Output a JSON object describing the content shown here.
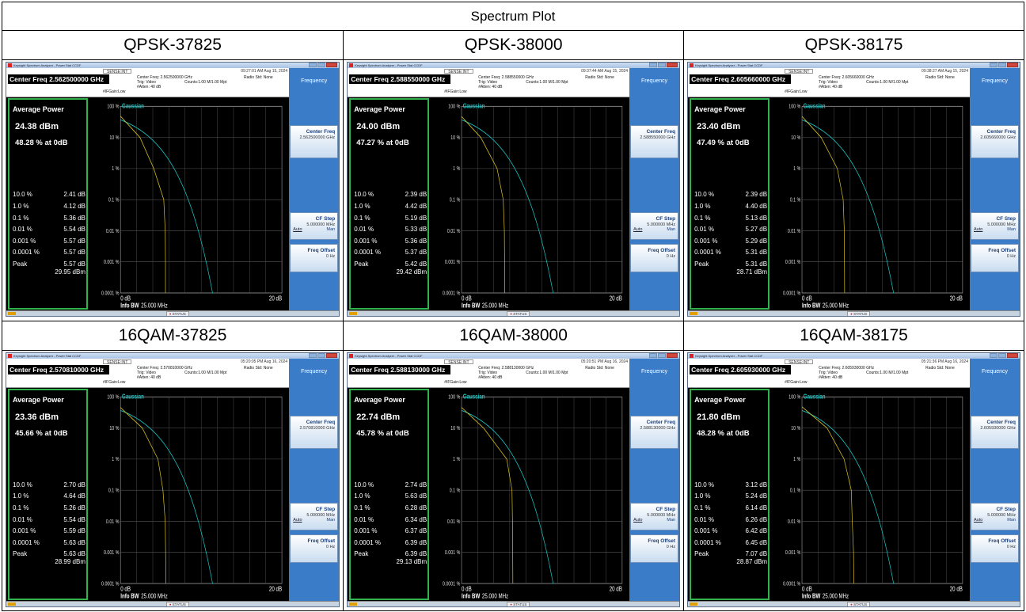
{
  "title": "Spectrum Plot",
  "info_bw_label": "Info BW",
  "info_bw_value": "25.000 MHz",
  "x_start": "0 dB",
  "x_end": "20 dB",
  "y_ticks": [
    "100 %",
    "10 %",
    "1 %",
    "0.1 %",
    "0.01 %",
    "0.001 %",
    "0.0001 %"
  ],
  "gaussian_label": "Gaussian",
  "avg_power_title": "Average Power",
  "app_title": "Keysight Spectrum Analyzer - Power Stat CCDF",
  "status_text": "STATUS",
  "menu": {
    "title": "Frequency",
    "center_freq_label": "Center Freq",
    "cf_step_label": "CF Step",
    "cf_step_value": "5.000000 MHz",
    "auto": "Auto",
    "man": "Man",
    "freq_offset_label": "Freq Offset",
    "freq_offset_value": "0 Hz"
  },
  "header_static": {
    "trig": "Trig: Video",
    "atten": "#Atten: 40 dB",
    "counts": "Counts:1.00 M/1.00 Mpt",
    "radio": "Radio Std: None",
    "gain": "#IFGain:Low",
    "sense": "SENSE:INT"
  },
  "colors": {
    "gaussian": "#18c6c6",
    "measured": "#d8c020",
    "grid": "#888888",
    "border": "#2fb34c"
  },
  "panels": [
    {
      "label": "QPSK-37825",
      "center_freq": "Center Freq 2.562500000 GHz",
      "center_freq_small": "Center Freq: 2.562500000 GHz",
      "cf_value": "2.562500000 GHz",
      "timestamp": "09:27:01 AM Aug 15, 2024",
      "avg_power": "24.38 dBm",
      "pct_at_0db": "48.28 % at 0dB",
      "stats": [
        [
          "10.0 %",
          "2.41 dB"
        ],
        [
          "1.0 %",
          "4.12 dB"
        ],
        [
          "0.1 %",
          "5.36 dB"
        ],
        [
          "0.01 %",
          "5.54 dB"
        ],
        [
          "0.001 %",
          "5.57 dB"
        ],
        [
          "0.0001 %",
          "5.57 dB"
        ],
        [
          "Peak",
          "5.57 dB"
        ]
      ],
      "peak_dbm": "29.95 dBm"
    },
    {
      "label": "QPSK-38000",
      "center_freq": "Center Freq 2.588550000 GHz",
      "center_freq_small": "Center Freq: 2.588550000 GHz",
      "cf_value": "2.588550000 GHz",
      "timestamp": "09:37:44 AM Aug 15, 2024",
      "avg_power": "24.00 dBm",
      "pct_at_0db": "47.27 % at 0dB",
      "stats": [
        [
          "10.0 %",
          "2.39 dB"
        ],
        [
          "1.0 %",
          "4.42 dB"
        ],
        [
          "0.1 %",
          "5.19 dB"
        ],
        [
          "0.01 %",
          "5.33 dB"
        ],
        [
          "0.001 %",
          "5.36 dB"
        ],
        [
          "0.0001 %",
          "5.37 dB"
        ],
        [
          "Peak",
          "5.42 dB"
        ]
      ],
      "peak_dbm": "29.42 dBm"
    },
    {
      "label": "QPSK-38175",
      "center_freq": "Center Freq 2.605660000 GHz",
      "center_freq_small": "Center Freq: 2.605660000 GHz",
      "cf_value": "2.605660000 GHz",
      "timestamp": "09:38:27 AM Aug 15, 2024",
      "avg_power": "23.40 dBm",
      "pct_at_0db": "47.49 % at 0dB",
      "stats": [
        [
          "10.0 %",
          "2.39 dB"
        ],
        [
          "1.0 %",
          "4.40 dB"
        ],
        [
          "0.1 %",
          "5.13 dB"
        ],
        [
          "0.01 %",
          "5.27 dB"
        ],
        [
          "0.001 %",
          "5.29 dB"
        ],
        [
          "0.0001 %",
          "5.31 dB"
        ],
        [
          "Peak",
          "5.31 dB"
        ]
      ],
      "peak_dbm": "28.71 dBm"
    },
    {
      "label": "16QAM-37825",
      "center_freq": "Center Freq 2.570810000 GHz",
      "center_freq_small": "Center Freq: 2.570810000 GHz",
      "cf_value": "2.570810000 GHz",
      "timestamp": "05:20:05 PM Aug 16, 2024",
      "avg_power": "23.36 dBm",
      "pct_at_0db": "45.66 % at 0dB",
      "stats": [
        [
          "10.0 %",
          "2.70 dB"
        ],
        [
          "1.0 %",
          "4.64 dB"
        ],
        [
          "0.1 %",
          "5.26 dB"
        ],
        [
          "0.01 %",
          "5.54 dB"
        ],
        [
          "0.001 %",
          "5.59 dB"
        ],
        [
          "0.0001 %",
          "5.63 dB"
        ],
        [
          "Peak",
          "5.63 dB"
        ]
      ],
      "peak_dbm": "28.99 dBm"
    },
    {
      "label": "16QAM-38000",
      "center_freq": "Center Freq 2.588130000 GHz",
      "center_freq_small": "Center Freq: 2.588130000 GHz",
      "cf_value": "2.588130000 GHz",
      "timestamp": "05:20:51 PM Aug 16, 2024",
      "avg_power": "22.74 dBm",
      "pct_at_0db": "45.78 % at 0dB",
      "stats": [
        [
          "10.0 %",
          "2.74 dB"
        ],
        [
          "1.0 %",
          "5.63 dB"
        ],
        [
          "0.1 %",
          "6.28 dB"
        ],
        [
          "0.01 %",
          "6.34 dB"
        ],
        [
          "0.001 %",
          "6.37 dB"
        ],
        [
          "0.0001 %",
          "6.39 dB"
        ],
        [
          "Peak",
          "6.39 dB"
        ]
      ],
      "peak_dbm": "29.13 dBm"
    },
    {
      "label": "16QAM-38175",
      "center_freq": "Center Freq 2.605930000 GHz",
      "center_freq_small": "Center Freq: 2.605930000 GHz",
      "cf_value": "2.605930000 GHz",
      "timestamp": "05:21:36 PM Aug 16, 2024",
      "avg_power": "21.80 dBm",
      "pct_at_0db": "48.28 % at 0dB",
      "stats": [
        [
          "10.0 %",
          "3.12 dB"
        ],
        [
          "1.0 %",
          "5.24 dB"
        ],
        [
          "0.1 %",
          "6.14 dB"
        ],
        [
          "0.01 %",
          "6.26 dB"
        ],
        [
          "0.001 %",
          "6.42 dB"
        ],
        [
          "0.0001 %",
          "6.45 dB"
        ],
        [
          "Peak",
          "7.07 dB"
        ]
      ],
      "peak_dbm": "28.87 dBm"
    }
  ]
}
